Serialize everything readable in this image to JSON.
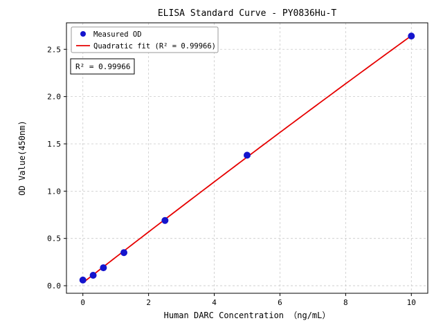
{
  "colors": {
    "marker": "#1414cd",
    "fit_line": "#e60000",
    "grid": "#c9c9c9",
    "axis": "#000000",
    "legend_border": "#999999",
    "background": "#ffffff"
  },
  "chart_data": {
    "type": "scatter",
    "title": "ELISA Standard Curve - PY0836Hu-T",
    "xlabel": "Human DARC Concentration （ng/mL）",
    "ylabel": "OD Value(450nm)",
    "x": [
      0,
      0.313,
      0.625,
      1.25,
      2.5,
      5,
      10
    ],
    "y": [
      0.06,
      0.11,
      0.19,
      0.35,
      0.69,
      1.38,
      2.64
    ],
    "series": [
      {
        "name": "Measured OD",
        "kind": "scatter"
      },
      {
        "name": "Quadratic fit (R² = 0.99966)",
        "kind": "line"
      }
    ],
    "annotation": "R² = 0.99966",
    "xlim": [
      -0.5,
      10.5
    ],
    "ylim": [
      -0.08,
      2.78
    ],
    "x_ticks": [
      0,
      2,
      4,
      6,
      8,
      10
    ],
    "x_tick_labels": [
      "0",
      "2",
      "4",
      "6",
      "8",
      "10"
    ],
    "y_ticks": [
      0,
      0.5,
      1,
      1.5,
      2,
      2.5
    ],
    "y_tick_labels": [
      "0.0",
      "0.5",
      "1.0",
      "1.5",
      "2.0",
      "2.5"
    ],
    "grid": true,
    "legend_position": "upper left"
  }
}
